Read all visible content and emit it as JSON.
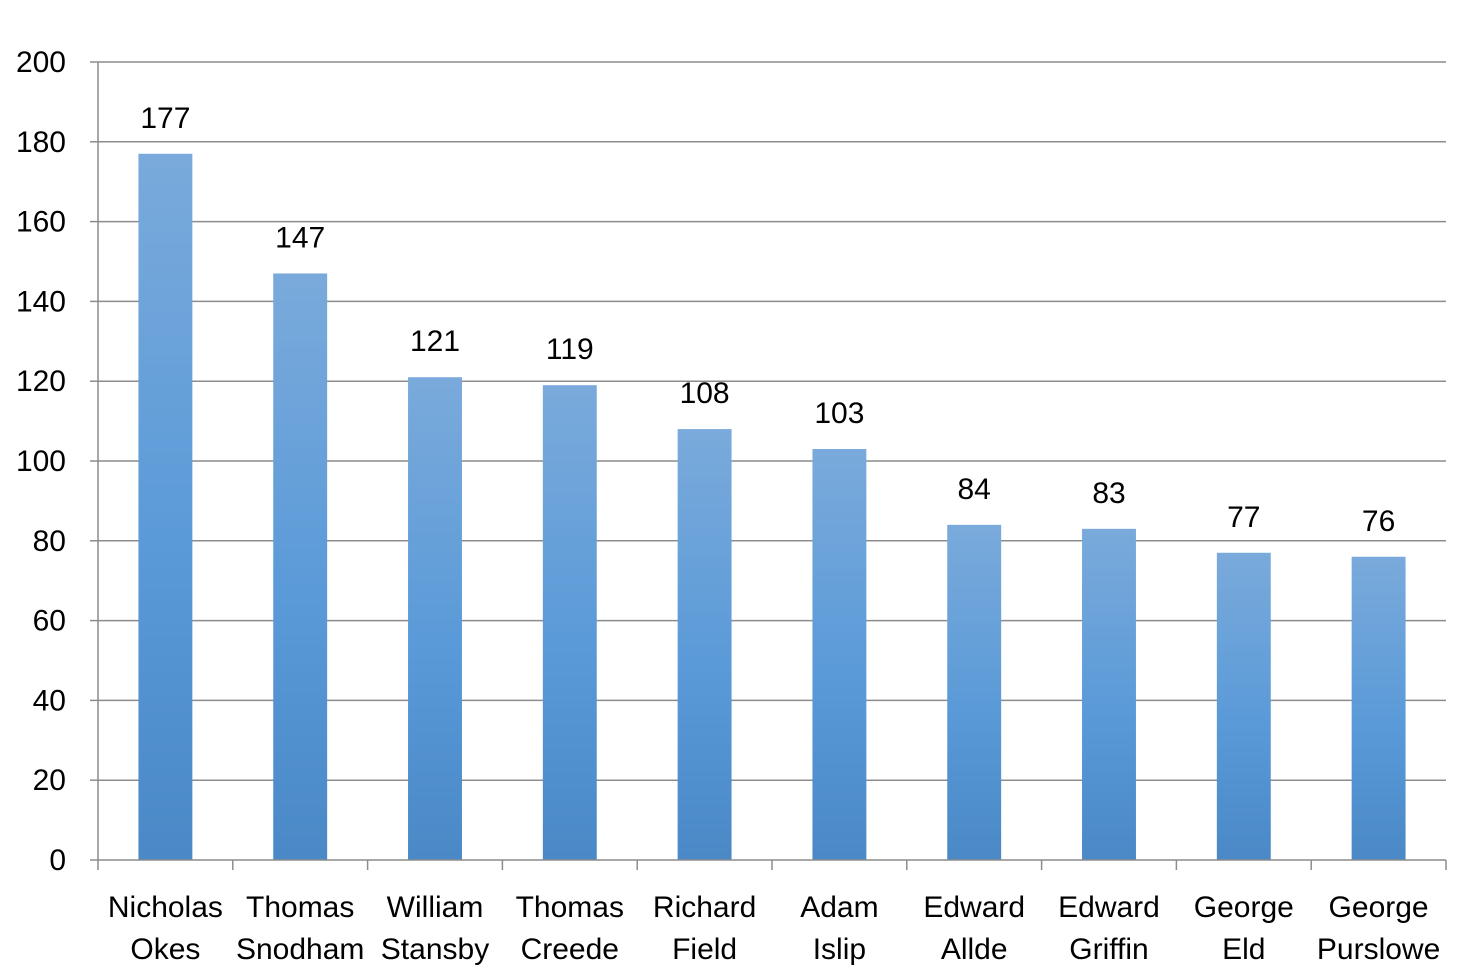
{
  "chart_data": {
    "type": "bar",
    "categories": [
      [
        "Nicholas",
        "Okes"
      ],
      [
        "Thomas",
        "Snodham"
      ],
      [
        "William",
        "Stansby"
      ],
      [
        "Thomas",
        "Creede"
      ],
      [
        "Richard",
        "Field"
      ],
      [
        "Adam",
        "Islip"
      ],
      [
        "Edward",
        "Allde"
      ],
      [
        "Edward",
        "Griffin"
      ],
      [
        "George",
        "Eld"
      ],
      [
        "George",
        "Purslowe"
      ]
    ],
    "values": [
      177,
      147,
      121,
      119,
      108,
      103,
      84,
      83,
      77,
      76
    ],
    "ylim": [
      0,
      200
    ],
    "yticks": [
      0,
      20,
      40,
      60,
      80,
      100,
      120,
      140,
      160,
      180,
      200
    ],
    "grid": true,
    "legend": "none",
    "colors": {
      "bar_top": "#7aaadb",
      "bar_mid": "#5a9ad8",
      "bar_bottom": "#4a88c6",
      "gridline": "#8c8c8c",
      "axis": "#8c8c8c"
    }
  }
}
